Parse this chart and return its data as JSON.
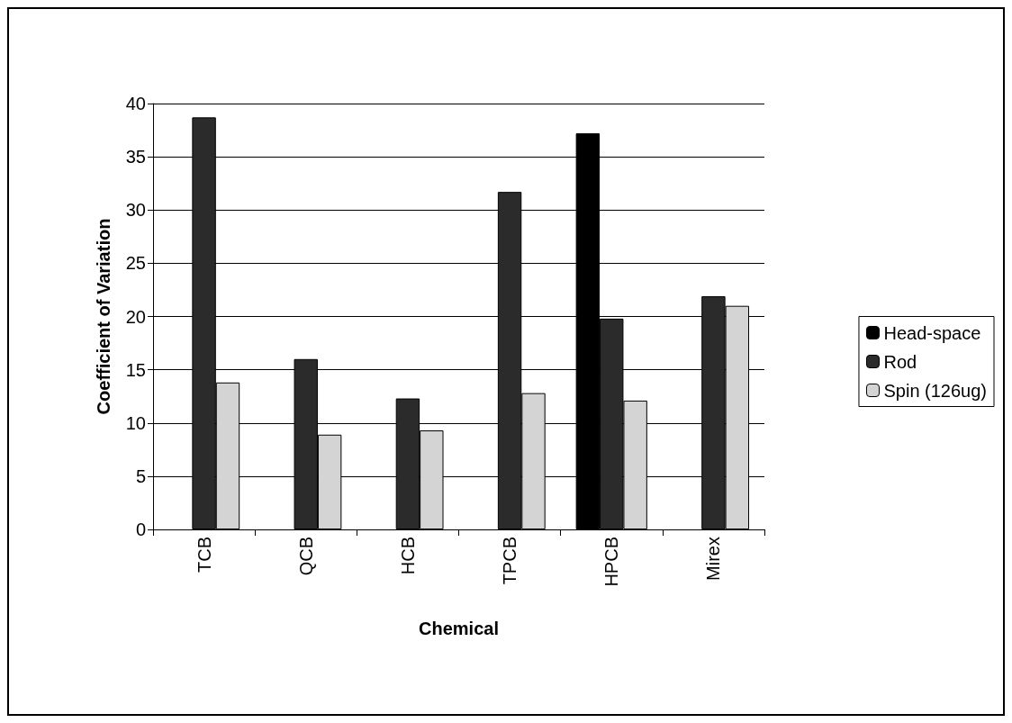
{
  "chart_data": {
    "type": "bar",
    "xlabel": "Chemical",
    "ylabel": "Coefficient of Variation",
    "categories": [
      "TCB",
      "QCB",
      "HCB",
      "TPCB",
      "HPCB",
      "Mirex"
    ],
    "series": [
      {
        "name": "Head-space",
        "color": "#000000",
        "values": [
          null,
          null,
          null,
          null,
          37.2,
          null
        ]
      },
      {
        "name": "Rod",
        "color": "#2b2b2b",
        "values": [
          38.7,
          16,
          12.3,
          31.7,
          19.8,
          21.9
        ]
      },
      {
        "name": "Spin (126ug)",
        "color": "#d4d4d4",
        "values": [
          13.8,
          8.9,
          9.3,
          12.8,
          12.1,
          21
        ]
      }
    ],
    "ylim": [
      0,
      40
    ],
    "yticks": [
      0,
      5,
      10,
      15,
      20,
      25,
      30,
      35,
      40
    ],
    "grid": "y",
    "legend": "right"
  }
}
